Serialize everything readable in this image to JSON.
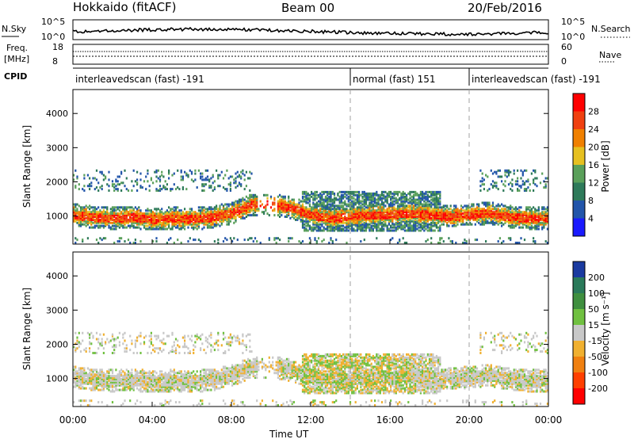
{
  "header": {
    "station": "Hokkaido (fitACF)",
    "beam": "Beam 00",
    "date": "20/Feb/2016"
  },
  "noise_panel": {
    "left_label": "N.Sky",
    "right_label": "N.Search",
    "left_ticks": [
      "10^5",
      "10^0"
    ],
    "right_ticks": [
      "10^5",
      "10^0"
    ]
  },
  "freq_panel": {
    "left_label_1": "Freq.",
    "left_label_2": "[MHz]",
    "left_ticks": [
      "18",
      "8"
    ],
    "right_label": "Nave",
    "right_ticks": [
      "60",
      "0"
    ]
  },
  "cpid_panel": {
    "label": "CPID",
    "modes": [
      {
        "text": "interleavedscan (fast) -191",
        "start_h": 0,
        "end_h": 14
      },
      {
        "text": "normal (fast) 151",
        "start_h": 14,
        "end_h": 20
      },
      {
        "text": "interleavedscan (fast) -191",
        "start_h": 20,
        "end_h": 24
      }
    ]
  },
  "time_axis": {
    "label": "Time UT",
    "ticks": [
      "00:00",
      "04:00",
      "08:00",
      "12:00",
      "16:00",
      "20:00",
      "00:00"
    ],
    "range_hours": [
      0,
      24
    ]
  },
  "range_axis": {
    "label": "Slant Range [km]",
    "ticks": [
      1000,
      2000,
      3000,
      4000
    ],
    "range_km": [
      180,
      4700
    ]
  },
  "power_colorbar": {
    "label": "Power [dB]",
    "tick_values": [
      4,
      8,
      12,
      16,
      20,
      24,
      28
    ],
    "colors": [
      "#1a1aff",
      "#2255aa",
      "#2e7a5a",
      "#5aa05a",
      "#e6c020",
      "#f08000",
      "#f04010",
      "#ff0000"
    ]
  },
  "velocity_colorbar": {
    "label": "Velocity [m s⁻¹]",
    "tick_values": [
      "200",
      "100",
      "50",
      "15",
      "-15",
      "-50",
      "-100",
      "-200"
    ],
    "colors": [
      "#1a3aa0",
      "#2a7a5a",
      "#3f8f3f",
      "#70c040",
      "#c8c8c8",
      "#f0b030",
      "#f08010",
      "#ff4000",
      "#ff0000"
    ]
  },
  "chart_data": {
    "type": "heatmap",
    "title": "Hokkaido (fitACF)",
    "subtitle": "Beam 00",
    "xlabel": "Time UT",
    "ylabel": "Slant Range [km]",
    "xlim": [
      0,
      24
    ],
    "ylim": [
      180,
      4700
    ],
    "band_range_km": [
      [
        0,
        1000
      ],
      [
        1,
        930
      ],
      [
        2,
        900
      ],
      [
        3,
        920
      ],
      [
        4,
        880
      ],
      [
        5,
        900
      ],
      [
        6,
        880
      ],
      [
        7,
        930
      ],
      [
        8,
        1050
      ],
      [
        9,
        1300
      ],
      [
        10,
        1300
      ],
      [
        11,
        1200
      ],
      [
        12,
        1000
      ],
      [
        13,
        900
      ],
      [
        14,
        950
      ],
      [
        15,
        1000
      ],
      [
        16,
        1000
      ],
      [
        17,
        1050
      ],
      [
        18,
        1000
      ],
      [
        19,
        950
      ],
      [
        20,
        1000
      ],
      [
        21,
        1050
      ],
      [
        22,
        950
      ],
      [
        23,
        900
      ],
      [
        24,
        900
      ]
    ],
    "series": [
      {
        "name": "Power",
        "units": "dB",
        "scale_min": 0,
        "scale_max": 30
      },
      {
        "name": "Velocity",
        "units": "m/s",
        "scale_min": -200,
        "scale_max": 200
      }
    ]
  },
  "colors": {
    "frame": "#000000",
    "dashed_line": "#a0a0a0",
    "background": "#ffffff"
  }
}
